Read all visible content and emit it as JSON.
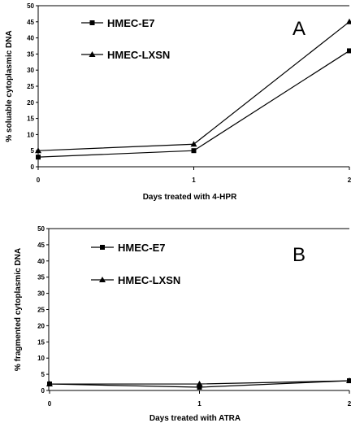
{
  "chart_data": [
    {
      "type": "line",
      "panel_label": "A",
      "xlabel": "Days treated with 4-HPR",
      "ylabel": "% soluable cytoplasmic DNA",
      "x": [
        0,
        1,
        2
      ],
      "xticks": [
        "0",
        "1",
        "2"
      ],
      "yticks": [
        "0",
        "5",
        "10",
        "15",
        "20",
        "25",
        "30",
        "35",
        "40",
        "45",
        "50"
      ],
      "ylim": [
        0,
        50
      ],
      "grid": false,
      "legend_position": "top-left",
      "series": [
        {
          "name": "HMEC-E7",
          "marker": "square",
          "values": [
            3,
            5,
            36
          ]
        },
        {
          "name": "HMEC-LXSN",
          "marker": "triangle",
          "values": [
            5,
            7,
            45
          ]
        }
      ]
    },
    {
      "type": "line",
      "panel_label": "B",
      "xlabel": "Days treated with ATRA",
      "ylabel": "% fragmented cytoplasmic DNA",
      "x": [
        0,
        1,
        2
      ],
      "xticks": [
        "0",
        "1",
        "2"
      ],
      "yticks": [
        "0",
        "5",
        "10",
        "15",
        "20",
        "25",
        "30",
        "35",
        "40",
        "45",
        "50"
      ],
      "ylim": [
        0,
        50
      ],
      "grid": false,
      "legend_position": "top-left",
      "series": [
        {
          "name": "HMEC-E7",
          "marker": "square",
          "values": [
            2,
            1,
            3
          ]
        },
        {
          "name": "HMEC-LXSN",
          "marker": "triangle",
          "values": [
            2,
            2,
            3
          ]
        }
      ]
    }
  ]
}
